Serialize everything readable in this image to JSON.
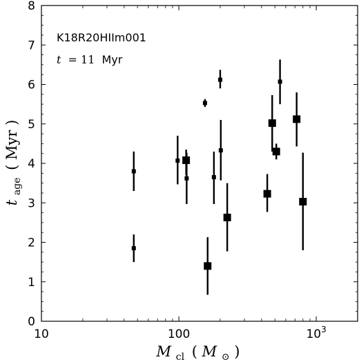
{
  "chart_data": {
    "type": "scatter",
    "title": "",
    "xlabel": "M_cl (M_⊙)",
    "xlabel_parts": {
      "main": "M",
      "main_sub": "cl",
      "unit": "M",
      "unit_sub": "⊙"
    },
    "ylabel": "t_age (Myr)",
    "ylabel_parts": {
      "main": "t",
      "main_sub": "age",
      "unit": "Myr"
    },
    "x_scale": "log",
    "xlim": [
      10,
      2000
    ],
    "ylim": [
      0,
      8
    ],
    "x_ticks": [
      {
        "value": 10,
        "label": "10"
      },
      {
        "value": 100,
        "label": "100"
      },
      {
        "value": 1000,
        "label": "10",
        "sup": "3"
      }
    ],
    "y_ticks": [
      0,
      1,
      2,
      3,
      4,
      5,
      6,
      7,
      8
    ],
    "grid": false,
    "legend": null,
    "annotations": [
      {
        "id": "run-name",
        "text": "K18R20HIIm001"
      },
      {
        "id": "time",
        "var": "t",
        "eq": "= 11",
        "unit": "Myr"
      }
    ],
    "marker_color": "#000000",
    "points": [
      {
        "x": 47,
        "y": 3.8,
        "y_lo": 3.3,
        "y_hi": 4.3,
        "marker": "small"
      },
      {
        "x": 47,
        "y": 1.85,
        "y_lo": 1.5,
        "y_hi": 2.2,
        "marker": "small"
      },
      {
        "x": 98,
        "y": 4.07,
        "y_lo": 3.47,
        "y_hi": 4.7,
        "marker": "small"
      },
      {
        "x": 113,
        "y": 4.08,
        "y_lo": 3.7,
        "y_hi": 4.35,
        "marker": "large"
      },
      {
        "x": 114,
        "y": 3.62,
        "y_lo": 2.97,
        "y_hi": 4.27,
        "marker": "small"
      },
      {
        "x": 155,
        "y": 5.53,
        "y_lo": 5.43,
        "y_hi": 5.63,
        "marker": "small"
      },
      {
        "x": 162,
        "y": 1.4,
        "y_lo": 0.67,
        "y_hi": 2.13,
        "marker": "large"
      },
      {
        "x": 180,
        "y": 3.65,
        "y_lo": 2.97,
        "y_hi": 4.3,
        "marker": "small"
      },
      {
        "x": 200,
        "y": 6.12,
        "y_lo": 5.9,
        "y_hi": 6.37,
        "marker": "small"
      },
      {
        "x": 202,
        "y": 4.33,
        "y_lo": 3.57,
        "y_hi": 5.1,
        "marker": "small"
      },
      {
        "x": 225,
        "y": 2.63,
        "y_lo": 1.77,
        "y_hi": 3.5,
        "marker": "large"
      },
      {
        "x": 440,
        "y": 3.23,
        "y_lo": 2.77,
        "y_hi": 3.73,
        "marker": "large"
      },
      {
        "x": 478,
        "y": 5.02,
        "y_lo": 4.3,
        "y_hi": 5.73,
        "marker": "large"
      },
      {
        "x": 512,
        "y": 4.3,
        "y_lo": 4.1,
        "y_hi": 4.5,
        "marker": "large"
      },
      {
        "x": 545,
        "y": 6.07,
        "y_lo": 5.5,
        "y_hi": 6.63,
        "marker": "small"
      },
      {
        "x": 720,
        "y": 5.12,
        "y_lo": 4.43,
        "y_hi": 5.8,
        "marker": "large"
      },
      {
        "x": 800,
        "y": 3.03,
        "y_lo": 1.8,
        "y_hi": 4.27,
        "marker": "large"
      }
    ]
  }
}
